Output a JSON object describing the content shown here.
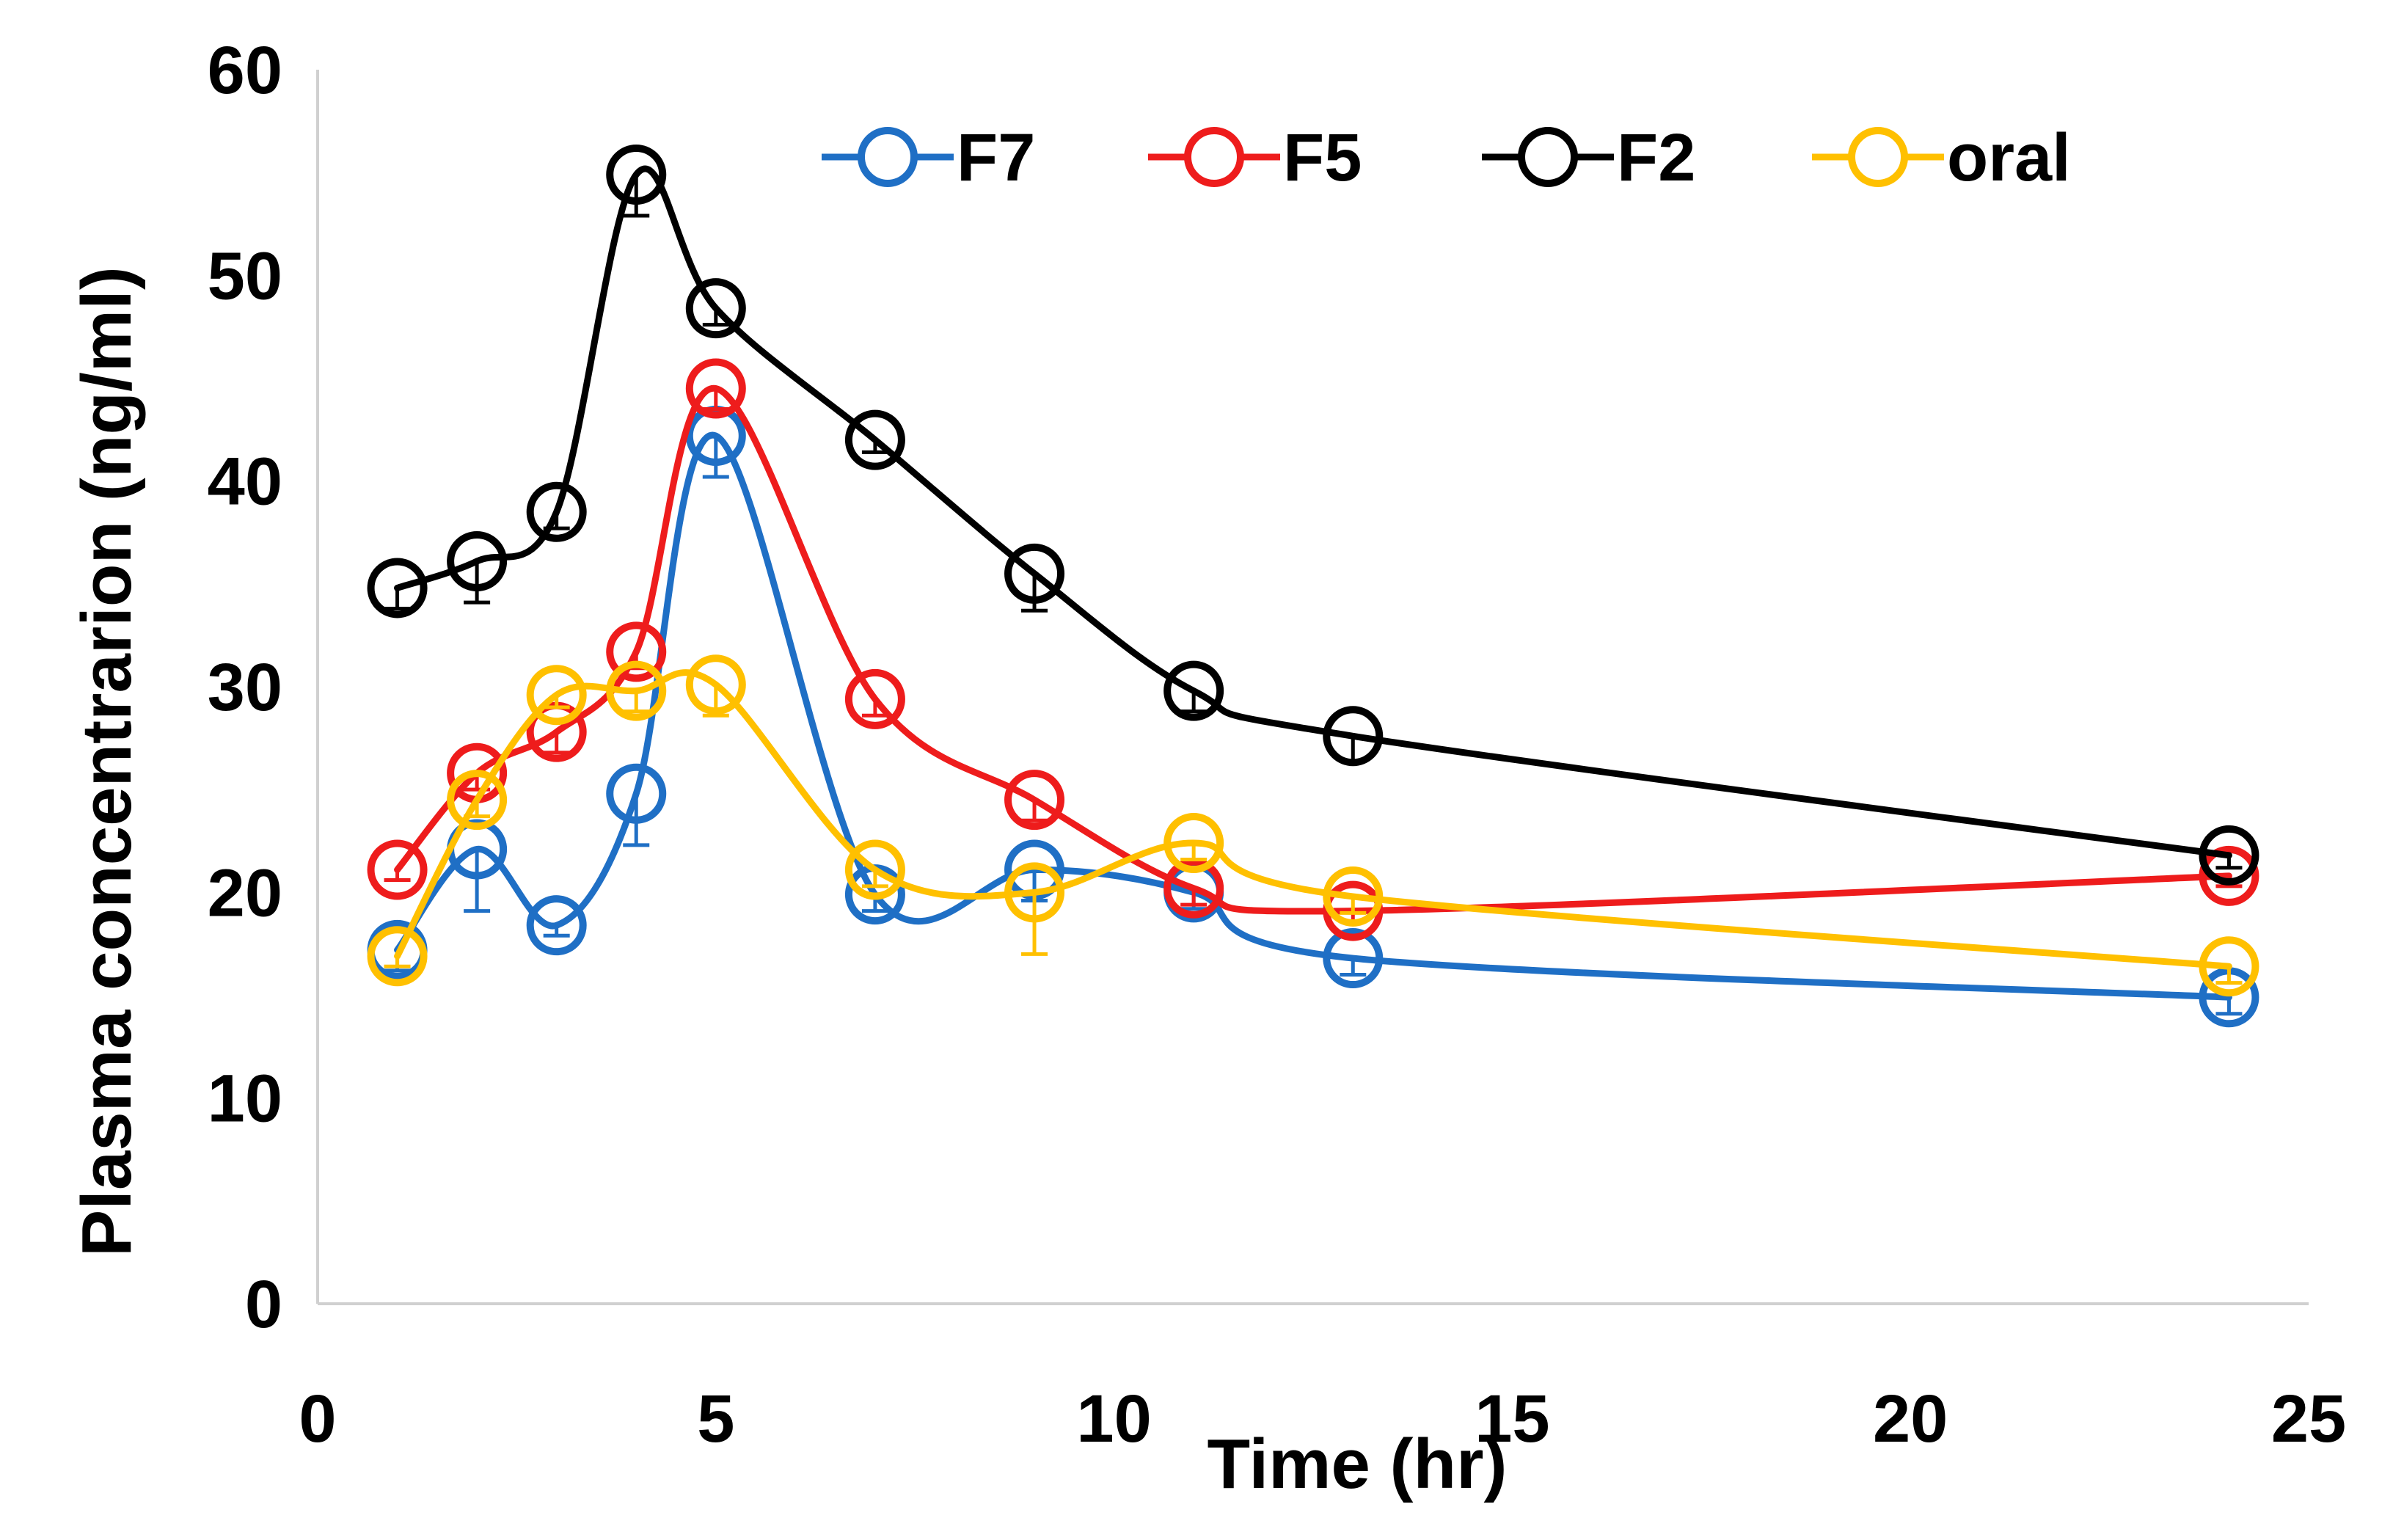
{
  "chart_data": {
    "type": "line",
    "title": "",
    "xlabel": "Time (hr)",
    "ylabel": "Plasma concentrarion (ng/ml)",
    "xlim": [
      0,
      25
    ],
    "ylim": [
      0,
      60
    ],
    "xticks": [
      "0",
      "5",
      "10",
      "15",
      "20",
      "25"
    ],
    "yticks": [
      "0",
      "10",
      "20",
      "30",
      "40",
      "50",
      "60"
    ],
    "grid": false,
    "legend_position": "top",
    "x": [
      1,
      2,
      3,
      4,
      5,
      7,
      9,
      11,
      13,
      24
    ],
    "series": [
      {
        "name": "F7",
        "color": "#1f6fc5",
        "values": [
          17.2,
          22.1,
          18.4,
          24.8,
          42.2,
          19.9,
          21.1,
          20.0,
          16.8,
          14.9
        ],
        "errors": [
          1.0,
          3.0,
          0.5,
          2.5,
          2.0,
          0.8,
          1.5,
          0.8,
          0.8,
          0.8
        ]
      },
      {
        "name": "F5",
        "color": "#ee1c1c",
        "values": [
          21.1,
          25.8,
          27.8,
          31.7,
          44.5,
          29.4,
          24.5,
          20.2,
          19.1,
          20.8
        ],
        "errors": [
          0.5,
          0.8,
          1.0,
          0.8,
          1.0,
          0.8,
          1.0,
          0.8,
          0.5,
          0.5
        ]
      },
      {
        "name": "F2",
        "color": "#000000",
        "values": [
          34.8,
          36.1,
          38.5,
          54.9,
          48.4,
          42.0,
          35.5,
          29.8,
          27.6,
          21.8
        ],
        "errors": [
          1.0,
          2.0,
          0.8,
          2.0,
          0.8,
          0.6,
          1.8,
          1.0,
          1.2,
          0.6
        ]
      },
      {
        "name": "oral",
        "color": "#ffc000",
        "values": [
          16.9,
          24.5,
          29.6,
          29.8,
          30.1,
          21.1,
          20.0,
          22.4,
          19.8,
          16.4
        ],
        "errors": [
          0.5,
          0.8,
          0.6,
          1.0,
          1.5,
          0.8,
          3.0,
          0.8,
          0.8,
          0.8
        ]
      }
    ]
  }
}
